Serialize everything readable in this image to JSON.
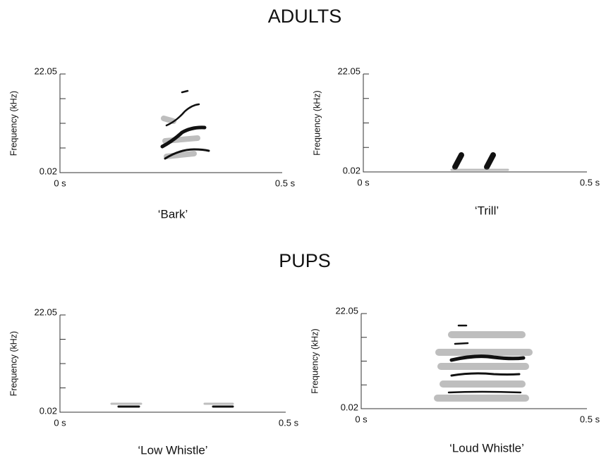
{
  "sections": [
    {
      "title": "ADULTS",
      "panels": [
        {
          "y_label": "Frequency (kHz)",
          "y_top": "22.05",
          "y_bottom": "0.02",
          "x_left": "0 s",
          "x_right": "0.5 s",
          "caption": "‘Bark’"
        },
        {
          "y_label": "Frequency (kHz)",
          "y_top": "22.05",
          "y_bottom": "0.02",
          "x_left": "0 s",
          "x_right": "0.5 s",
          "caption": "‘Trill’"
        }
      ]
    },
    {
      "title": "PUPS",
      "panels": [
        {
          "y_label": "Frequency (kHz)",
          "y_top": "22.05",
          "y_bottom": "0.02",
          "x_left": "0 s",
          "x_right": "0.5 s",
          "caption": "‘Low Whistle’"
        },
        {
          "y_label": "Frequency (kHz)",
          "y_top": "22.05",
          "y_bottom": "0.02",
          "x_left": "0 s",
          "x_right": "0.5 s",
          "caption": "‘Loud Whistle’"
        }
      ]
    }
  ]
}
